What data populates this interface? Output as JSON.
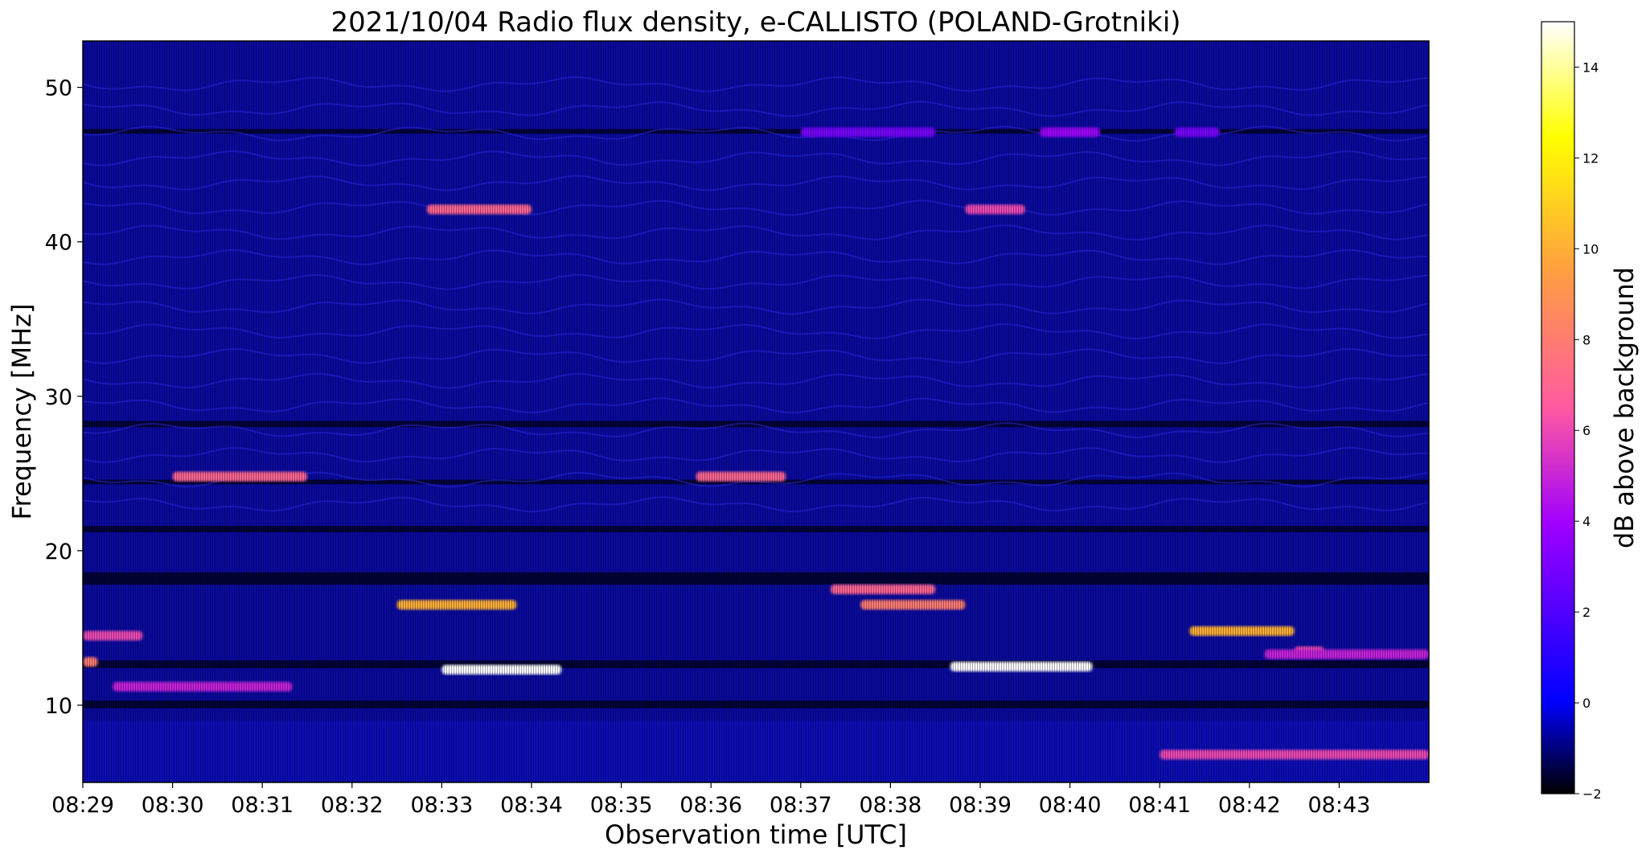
{
  "chart_data": {
    "type": "heatmap",
    "title": "2021/10/04  Radio flux density, e-CALLISTO (POLAND-Grotniki)",
    "xlabel": "Observation time [UTC]",
    "ylabel": "Frequency [MHz]",
    "xlim": [
      "08:29",
      "08:44"
    ],
    "ylim": [
      5,
      53
    ],
    "x_ticks": [
      "08:29",
      "08:30",
      "08:31",
      "08:32",
      "08:33",
      "08:34",
      "08:35",
      "08:36",
      "08:37",
      "08:38",
      "08:39",
      "08:40",
      "08:41",
      "08:42",
      "08:43"
    ],
    "y_ticks": [
      10,
      20,
      30,
      40,
      50
    ],
    "colorbar": {
      "label": "dB above background",
      "range": [
        -2,
        15
      ],
      "ticks": [
        -2,
        0,
        2,
        4,
        6,
        8,
        10,
        12,
        14
      ],
      "colormap": [
        "#000000",
        "#0000ff",
        "#a000ff",
        "#ff5aa0",
        "#ffa040",
        "#ffff00",
        "#ffffff"
      ]
    },
    "features": [
      {
        "kind": "band",
        "t0": "08:33:00",
        "t1": "08:34:20",
        "f": 12.3,
        "level": 15
      },
      {
        "kind": "band",
        "t0": "08:38:40",
        "t1": "08:40:15",
        "f": 12.5,
        "level": 15
      },
      {
        "kind": "band",
        "t0": "08:32:30",
        "t1": "08:33:50",
        "f": 16.5,
        "level": 10
      },
      {
        "kind": "band",
        "t0": "08:37:40",
        "t1": "08:38:50",
        "f": 16.5,
        "level": 8
      },
      {
        "kind": "band",
        "t0": "08:37:20",
        "t1": "08:38:30",
        "f": 17.5,
        "level": 7
      },
      {
        "kind": "band",
        "t0": "08:41:20",
        "t1": "08:42:30",
        "f": 14.8,
        "level": 10
      },
      {
        "kind": "band",
        "t0": "08:42:30",
        "t1": "08:42:50",
        "f": 13.5,
        "level": 6
      },
      {
        "kind": "band",
        "t0": "08:29:00",
        "t1": "08:29:40",
        "f": 14.5,
        "level": 6
      },
      {
        "kind": "band",
        "t0": "08:29:00",
        "t1": "08:29:10",
        "f": 12.8,
        "level": 8
      },
      {
        "kind": "band",
        "t0": "08:30:00",
        "t1": "08:31:30",
        "f": 24.8,
        "level": 7
      },
      {
        "kind": "band",
        "t0": "08:35:50",
        "t1": "08:36:50",
        "f": 24.8,
        "level": 7
      },
      {
        "kind": "band",
        "t0": "08:32:50",
        "t1": "08:34:00",
        "f": 42.1,
        "level": 7
      },
      {
        "kind": "band",
        "t0": "08:38:50",
        "t1": "08:39:30",
        "f": 42.1,
        "level": 6
      },
      {
        "kind": "band",
        "t0": "08:37:00",
        "t1": "08:38:30",
        "f": 47.1,
        "level": 3
      },
      {
        "kind": "band",
        "t0": "08:39:40",
        "t1": "08:40:20",
        "f": 47.1,
        "level": 4
      },
      {
        "kind": "band",
        "t0": "08:41:10",
        "t1": "08:41:40",
        "f": 47.1,
        "level": 3
      },
      {
        "kind": "band",
        "t0": "08:29:20",
        "t1": "08:31:20",
        "f": 11.2,
        "level": 5
      },
      {
        "kind": "band",
        "t0": "08:41:00",
        "t1": "08:44:00",
        "f": 6.8,
        "level": 6
      },
      {
        "kind": "band",
        "t0": "08:42:10",
        "t1": "08:44:00",
        "f": 13.3,
        "level": 5
      }
    ]
  }
}
